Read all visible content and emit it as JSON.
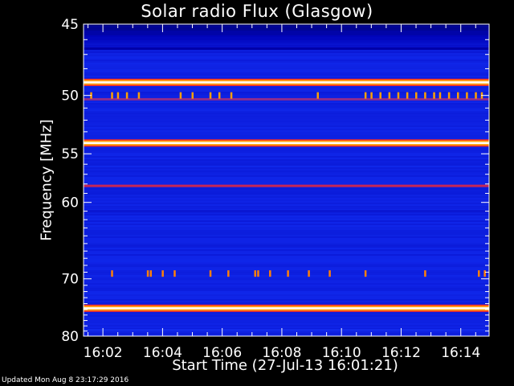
{
  "chart_data": {
    "type": "heatmap",
    "title": "Solar radio Flux (Glasgow)",
    "xlabel": "Start Time (27-Jul-13 16:01:21)",
    "ylabel": "Frequency [MHz]",
    "x_tick_labels": [
      "16:02",
      "16:04",
      "16:06",
      "16:08",
      "16:10",
      "16:12",
      "16:14"
    ],
    "x_tick_minutes": [
      2,
      4,
      6,
      8,
      10,
      12,
      14
    ],
    "xlim_minutes": [
      1.35,
      14.95
    ],
    "y_tick_labels": [
      "45",
      "50",
      "55",
      "60",
      "70",
      "80"
    ],
    "y_tick_values": [
      45,
      50,
      55,
      60,
      70,
      80
    ],
    "ylim": [
      45,
      80
    ],
    "y_scale": "reciprocal",
    "colormap": [
      "#00003c",
      "#0000b4",
      "#1838ff",
      "#ff2020",
      "#ffa000",
      "#ffffff"
    ],
    "background_color": "#0d1fe0",
    "bands": [
      {
        "freq": 46.6,
        "level": 0.18
      },
      {
        "freq": 49.0,
        "level": 1.0
      },
      {
        "freq": 50.3,
        "level": 0.5
      },
      {
        "freq": 54.0,
        "level": 1.0
      },
      {
        "freq": 58.2,
        "level": 0.55
      },
      {
        "freq": 61.0,
        "level": 0.28
      },
      {
        "freq": 74.8,
        "level": 1.0
      },
      {
        "freq": 78.8,
        "level": 0.35
      }
    ],
    "bursts": [
      {
        "freq": 50.0,
        "level": 0.8,
        "times_minutes": [
          1.6,
          2.3,
          2.5,
          2.8,
          3.2,
          4.6,
          5.0,
          5.6,
          5.9,
          6.3,
          9.2,
          10.8,
          11.0,
          11.3,
          11.6,
          11.9,
          12.2,
          12.5,
          12.8,
          13.1,
          13.3,
          13.6,
          13.9,
          14.2,
          14.5,
          14.7
        ]
      },
      {
        "freq": 69.2,
        "level": 0.75,
        "times_minutes": [
          2.3,
          3.5,
          3.6,
          4.0,
          4.4,
          5.6,
          6.2,
          7.1,
          7.2,
          7.6,
          8.2,
          8.9,
          9.6,
          10.8,
          12.8,
          14.6,
          14.8
        ]
      }
    ]
  },
  "footer": "Updated Mon Aug  8 23:17:29 2016"
}
